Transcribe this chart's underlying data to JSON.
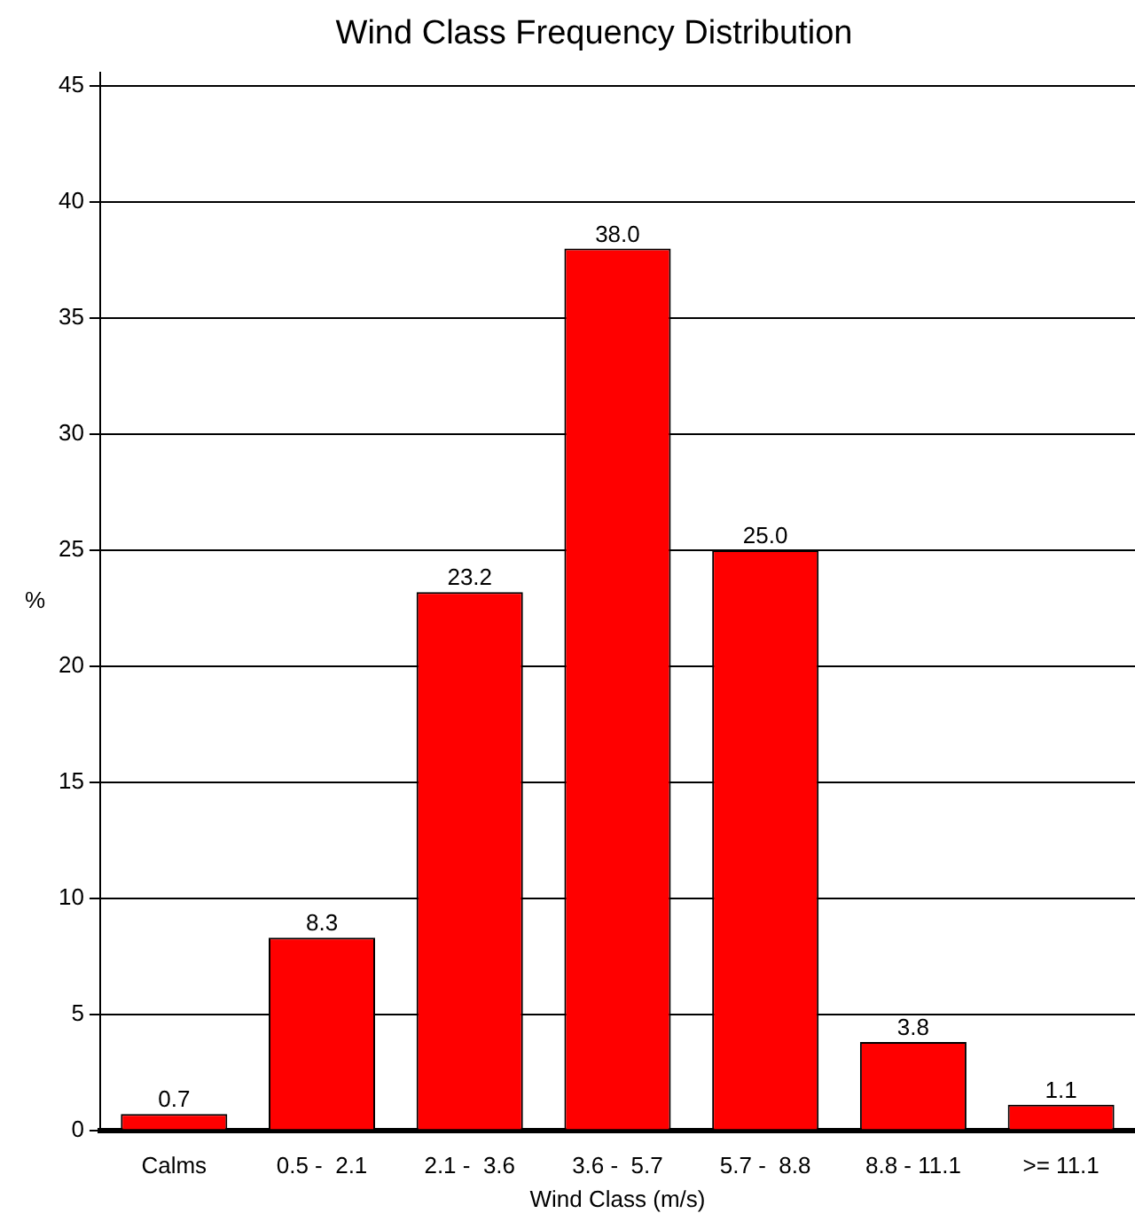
{
  "chart_data": {
    "type": "bar",
    "title": "Wind Class Frequency Distribution",
    "xlabel": "Wind Class (m/s)",
    "ylabel": "%",
    "categories": [
      "Calms",
      "0.5 -  2.1",
      "2.1 -  3.6",
      "3.6 -  5.7",
      "5.7 -  8.8",
      "8.8 - 11.1",
      ">= 11.1"
    ],
    "values": [
      0.7,
      8.3,
      23.2,
      38.0,
      25.0,
      3.8,
      1.1
    ],
    "value_labels": [
      "0.7",
      "8.3",
      "23.2",
      "38.0",
      "25.0",
      "3.8",
      "1.1"
    ],
    "color": "#ff0000",
    "ylim": [
      0,
      45.6
    ],
    "yticks": [
      0,
      5,
      10,
      15,
      20,
      25,
      30,
      35,
      40,
      45
    ],
    "grid": "y"
  }
}
